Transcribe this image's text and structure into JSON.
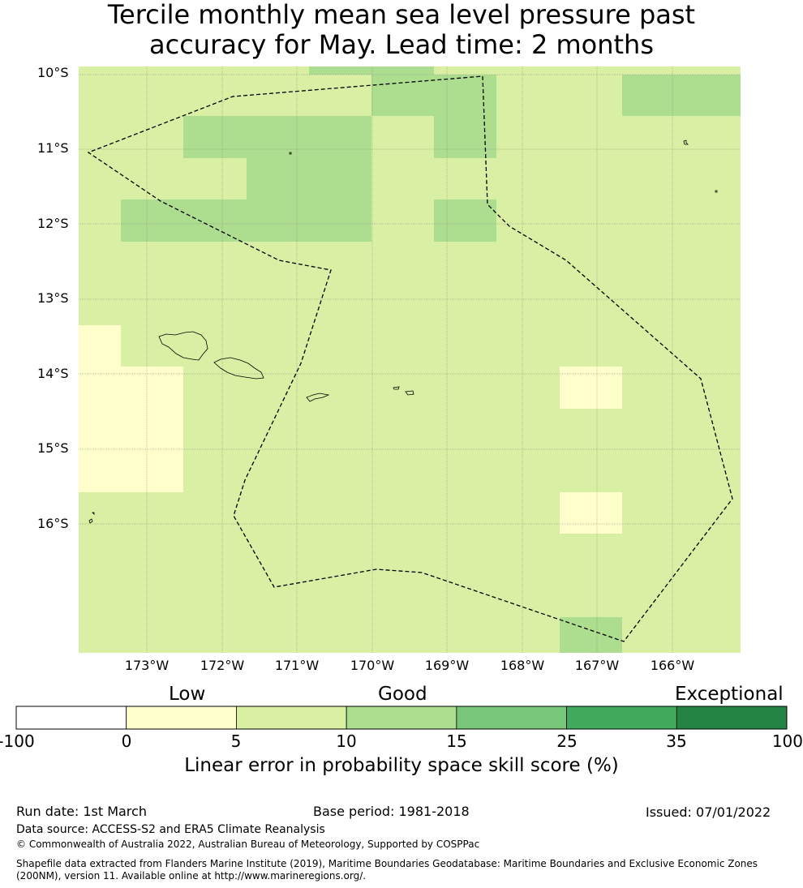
{
  "title": {
    "line1": "Tercile monthly mean sea level pressure past",
    "line2": "accuracy for May. Lead time: 2 months"
  },
  "map": {
    "lat_labels": [
      "10°S",
      "11°S",
      "12°S",
      "13°S",
      "14°S",
      "15°S",
      "16°S"
    ],
    "lon_labels": [
      "173°W",
      "172°W",
      "171°W",
      "170°W",
      "169°W",
      "168°W",
      "167°W",
      "166°W"
    ],
    "colors": {
      "background": "#d9efa3",
      "low": "#ffffcc",
      "good": "#addd8e",
      "boundary": "#000000",
      "grid": "#777777"
    }
  },
  "legend": {
    "categories": [
      "Low",
      "Good",
      "Exceptional"
    ],
    "boundaries": [
      "-100",
      "0",
      "5",
      "10",
      "15",
      "25",
      "35",
      "100"
    ],
    "colors": [
      "#ffffff",
      "#ffffcc",
      "#d9f0a3",
      "#addd8e",
      "#78c679",
      "#41ab5d",
      "#238443"
    ],
    "title": "Linear error in probability space skill score (%)"
  },
  "footer": {
    "run_date": "Run date: 1st March",
    "base_period": "Base period: 1981-2018",
    "issued": "Issued: 07/01/2022",
    "data_source": "Data source: ACCESS-S2 and ERA5 Climate Reanalysis",
    "copyright": "© Commonwealth of Australia 2022, Australian Bureau of Meteorology, Supported by COSPPac",
    "shapefile": "Shapefile data extracted from Flanders Marine Institute (2019), Maritime Boundaries Geodatabase: Maritime Boundaries and Exclusive Economic Zones (200NM), version 11. Available online at http://www.marineregions.org/."
  }
}
